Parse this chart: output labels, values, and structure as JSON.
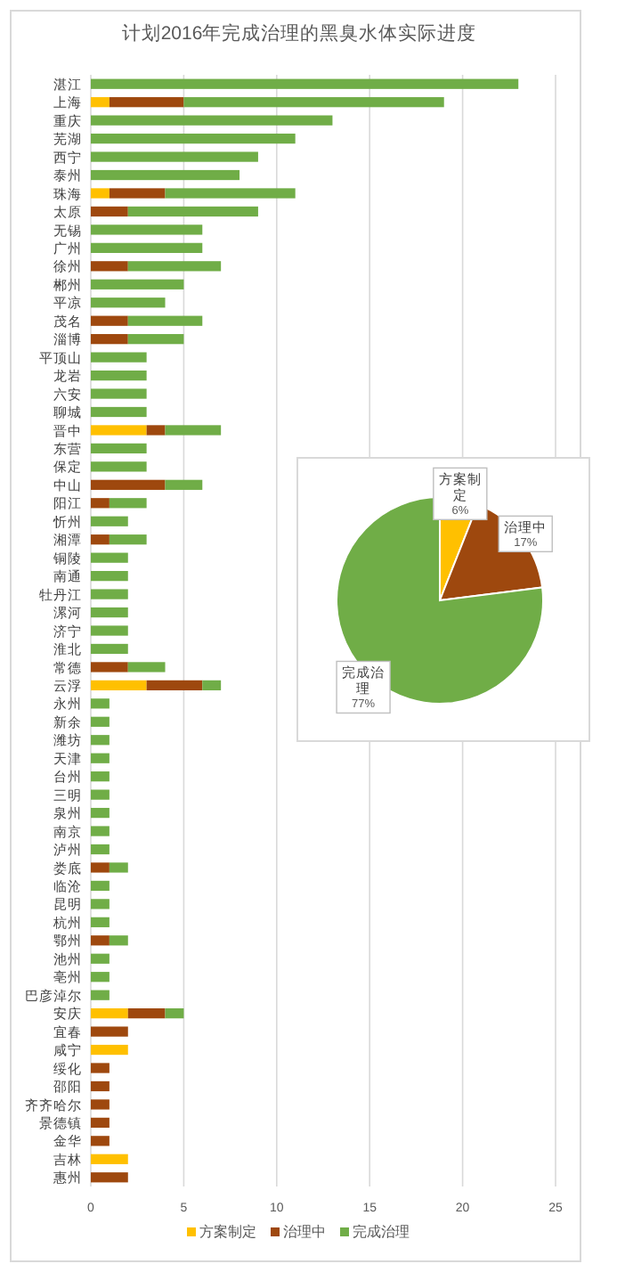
{
  "chart_data": [
    {
      "type": "bar",
      "orientation": "horizontal",
      "stacked": true,
      "title": "计划2016年完成治理的黑臭水体实际进度",
      "categories": [
        "湛江",
        "上海",
        "重庆",
        "芜湖",
        "西宁",
        "泰州",
        "珠海",
        "太原",
        "无锡",
        "广州",
        "徐州",
        "郴州",
        "平凉",
        "茂名",
        "淄博",
        "平顶山",
        "龙岩",
        "六安",
        "聊城",
        "晋中",
        "东营",
        "保定",
        "中山",
        "阳江",
        "忻州",
        "湘潭",
        "铜陵",
        "南通",
        "牡丹江",
        "漯河",
        "济宁",
        "淮北",
        "常德",
        "云浮",
        "永州",
        "新余",
        "潍坊",
        "天津",
        "台州",
        "三明",
        "泉州",
        "南京",
        "泸州",
        "娄底",
        "临沧",
        "昆明",
        "杭州",
        "鄂州",
        "池州",
        "亳州",
        "巴彦淖尔",
        "安庆",
        "宜春",
        "咸宁",
        "绥化",
        "邵阳",
        "齐齐哈尔",
        "景德镇",
        "金华",
        "吉林",
        "惠州"
      ],
      "series": [
        {
          "name": "方案制定",
          "color": "#ffc000",
          "values": [
            0,
            1,
            0,
            0,
            0,
            0,
            1,
            0,
            0,
            0,
            0,
            0,
            0,
            0,
            0,
            0,
            0,
            0,
            0,
            3,
            0,
            0,
            0,
            0,
            0,
            0,
            0,
            0,
            0,
            0,
            0,
            0,
            0,
            3,
            0,
            0,
            0,
            0,
            0,
            0,
            0,
            0,
            0,
            0,
            0,
            0,
            0,
            0,
            0,
            0,
            0,
            2,
            0,
            2,
            0,
            0,
            0,
            0,
            0,
            2,
            0
          ]
        },
        {
          "name": "治理中",
          "color": "#9e480e",
          "values": [
            0,
            4,
            0,
            0,
            0,
            0,
            3,
            2,
            0,
            0,
            2,
            0,
            0,
            2,
            2,
            0,
            0,
            0,
            0,
            1,
            0,
            0,
            4,
            1,
            0,
            1,
            0,
            0,
            0,
            0,
            0,
            0,
            2,
            3,
            0,
            0,
            0,
            0,
            0,
            0,
            0,
            0,
            0,
            1,
            0,
            0,
            0,
            1,
            0,
            0,
            0,
            2,
            2,
            0,
            1,
            1,
            1,
            1,
            1,
            0,
            2
          ]
        },
        {
          "name": "完成治理",
          "color": "#70ad47",
          "values": [
            23,
            14,
            13,
            11,
            9,
            8,
            7,
            7,
            6,
            6,
            5,
            5,
            4,
            4,
            3,
            3,
            3,
            3,
            3,
            3,
            3,
            3,
            2,
            2,
            2,
            2,
            2,
            2,
            2,
            2,
            2,
            2,
            2,
            1,
            1,
            1,
            1,
            1,
            1,
            1,
            1,
            1,
            1,
            1,
            1,
            1,
            1,
            1,
            1,
            1,
            1,
            1,
            0,
            0,
            0,
            0,
            0,
            0,
            0,
            0,
            0
          ]
        }
      ],
      "xlim": [
        0,
        25
      ],
      "xticks": [
        0,
        5,
        10,
        15,
        20,
        25
      ],
      "grid": "x",
      "legend": "bottom"
    },
    {
      "type": "pie",
      "categories": [
        "方案制定",
        "治理中",
        "完成治理"
      ],
      "values": [
        6,
        17,
        77
      ],
      "colors": [
        "#ffc000",
        "#9e480e",
        "#70ad47"
      ],
      "value_labels": [
        "6%",
        "17%",
        "77%"
      ]
    }
  ]
}
